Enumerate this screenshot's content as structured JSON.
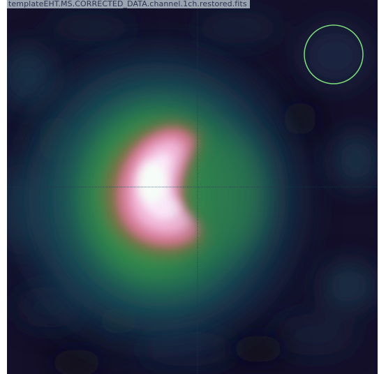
{
  "viewer": {
    "image_title": "templateEHT.MS.CORRECTED_DATA.channel.1ch.restored.fits",
    "colormap_icon": "cubehelix-colormap",
    "beam_color": "#7fe07a",
    "crosshair_color": "#1d3a4a",
    "background_color": "#130f24"
  }
}
